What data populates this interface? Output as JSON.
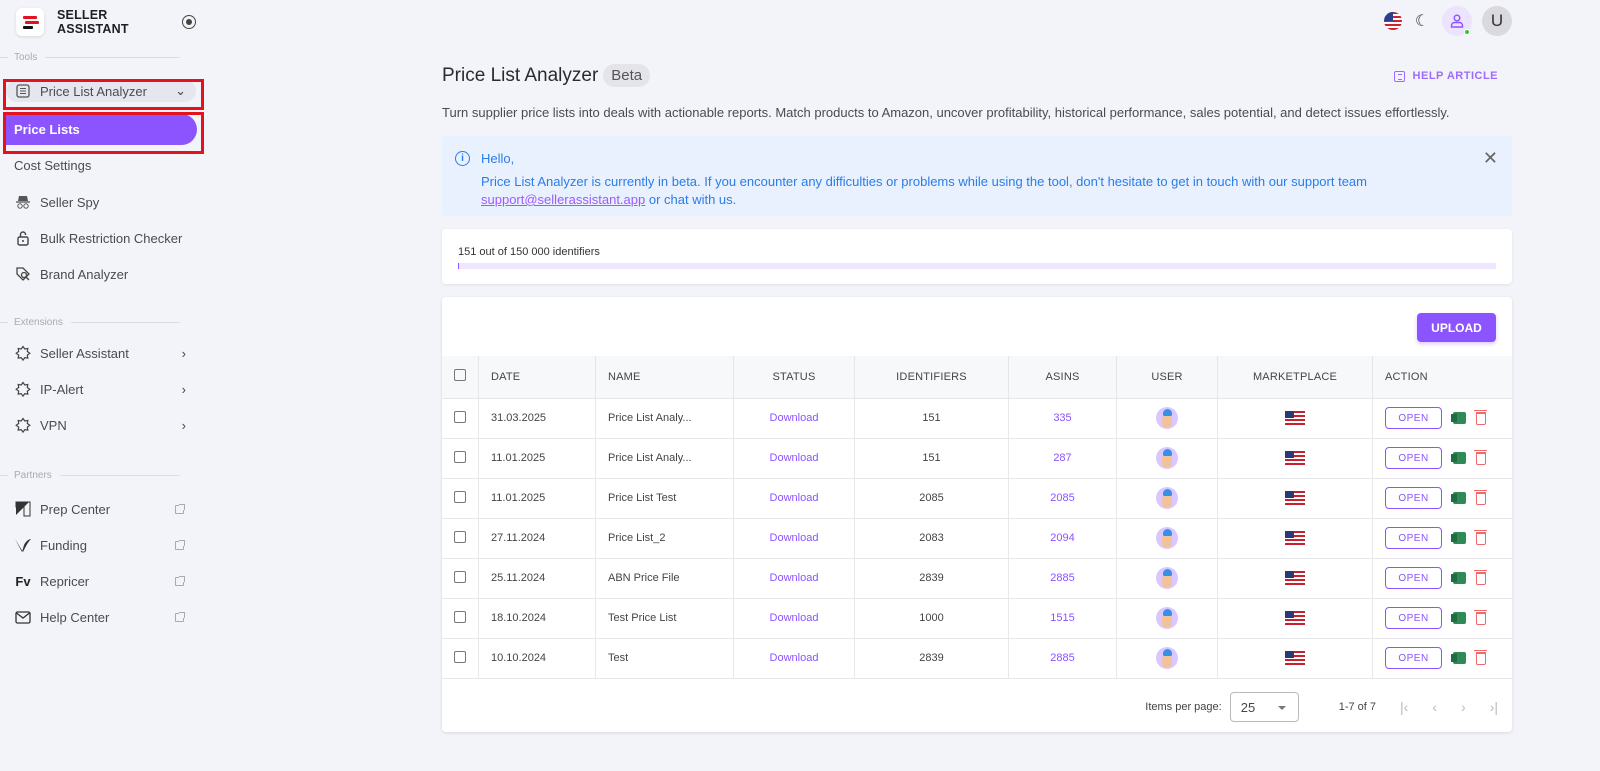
{
  "app": {
    "brand_line1": "SELLER",
    "brand_line2": "ASSISTANT",
    "logo_colors": [
      "#e3121e",
      "#e3121e",
      "#111111"
    ]
  },
  "sidebar": {
    "sections": {
      "tools": "Tools",
      "extensions": "Extensions",
      "partners": "Partners"
    },
    "tools": [
      {
        "label": "Price List Analyzer",
        "icon": "table-icon",
        "expanded": true
      },
      {
        "label": "Price Lists",
        "active": true
      },
      {
        "label": "Cost Settings"
      },
      {
        "label": "Seller Spy",
        "icon": "spy-icon"
      },
      {
        "label": "Bulk Restriction Checker",
        "icon": "lock-icon"
      },
      {
        "label": "Brand Analyzer",
        "icon": "tag-search-icon"
      }
    ],
    "extensions": [
      {
        "label": "Seller Assistant",
        "icon": "puzzle-icon"
      },
      {
        "label": "IP-Alert",
        "icon": "puzzle-icon"
      },
      {
        "label": "VPN",
        "icon": "puzzle-icon"
      }
    ],
    "partners": [
      {
        "label": "Prep Center",
        "icon": "prep-center-logo"
      },
      {
        "label": "Funding",
        "icon": "funding-logo"
      },
      {
        "label": "Repricer",
        "icon": "fv-logo",
        "glyph": "Fv"
      },
      {
        "label": "Help Center",
        "icon": "mail-icon"
      }
    ]
  },
  "topbar": {
    "avatar_initial": "U",
    "accent": "#8c54ff"
  },
  "page": {
    "title": "Price List Analyzer",
    "badge": "Beta",
    "help_link": "HELP ARTICLE",
    "subtitle": "Turn supplier price lists into deals with actionable reports. Match products to Amazon, uncover profitability, historical performance, sales potential, and detect issues effortlessly."
  },
  "alert": {
    "greeting": "Hello,",
    "message": "Price List Analyzer is currently in beta. If you encounter any difficulties or problems while using the tool, don't hesitate to get in touch with our support team",
    "email": "support@sellerassistant.app",
    "suffix": " or chat with us."
  },
  "quota": {
    "label": "151 out of 150 000 identifiers",
    "used": 151,
    "total": 150000
  },
  "table": {
    "upload_label": "UPLOAD",
    "columns": [
      "DATE",
      "NAME",
      "STATUS",
      "IDENTIFIERS",
      "ASINS",
      "USER",
      "MARKETPLACE",
      "ACTION"
    ],
    "open_label": "OPEN",
    "rows": [
      {
        "date": "31.03.2025",
        "name": "Price List Analy...",
        "status": "Download",
        "identifiers": "151",
        "asins": "335",
        "marketplace": "US"
      },
      {
        "date": "11.01.2025",
        "name": "Price List Analy...",
        "status": "Download",
        "identifiers": "151",
        "asins": "287",
        "marketplace": "US"
      },
      {
        "date": "11.01.2025",
        "name": "Price List Test",
        "status": "Download",
        "identifiers": "2085",
        "asins": "2085",
        "marketplace": "US"
      },
      {
        "date": "27.11.2024",
        "name": "Price List_2",
        "status": "Download",
        "identifiers": "2083",
        "asins": "2094",
        "marketplace": "US"
      },
      {
        "date": "25.11.2024",
        "name": "ABN Price File",
        "status": "Download",
        "identifiers": "2839",
        "asins": "2885",
        "marketplace": "US"
      },
      {
        "date": "18.10.2024",
        "name": "Test Price List",
        "status": "Download",
        "identifiers": "1000",
        "asins": "1515",
        "marketplace": "US"
      },
      {
        "date": "10.10.2024",
        "name": "Test",
        "status": "Download",
        "identifiers": "2839",
        "asins": "2885",
        "marketplace": "US"
      }
    ]
  },
  "pagination": {
    "items_per_page_label": "Items per page:",
    "items_per_page": "25",
    "range": "1-7 of 7"
  }
}
